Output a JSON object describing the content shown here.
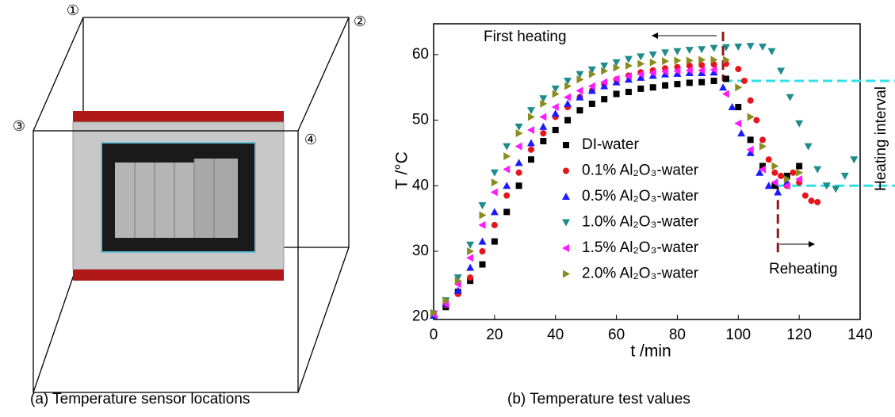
{
  "figure_a": {
    "labels": [
      "①",
      "②",
      "③",
      "④"
    ],
    "caption": "(a) Temperature sensor locations"
  },
  "chart_data": {
    "type": "scatter",
    "caption": "(b) Temperature test values",
    "x_label": "t /min",
    "y_label": "T /°C",
    "xlim": [
      0,
      140
    ],
    "ylim": [
      19.6,
      64.7
    ],
    "xticks": [
      0,
      20,
      40,
      60,
      80,
      100,
      120,
      140
    ],
    "yticks": [
      20,
      30,
      40,
      50,
      60
    ],
    "annotations": [
      "First heating",
      "Reheating",
      "Heating interval"
    ],
    "reference_lines": {
      "x": [
        95,
        113
      ],
      "y": [
        56,
        40
      ]
    },
    "series": [
      {
        "name": "DI-water",
        "color": "#000000",
        "marker": "square",
        "x": [
          0,
          4,
          8,
          12,
          16,
          20,
          24,
          28,
          32,
          36,
          40,
          44,
          48,
          52,
          56,
          60,
          64,
          68,
          72,
          76,
          80,
          84,
          88,
          92,
          96,
          100,
          104,
          108,
          112,
          116,
          120
        ],
        "values": [
          20.3,
          21.5,
          23.8,
          25.5,
          28,
          31.5,
          36,
          40,
          44,
          46.8,
          48.5,
          50,
          51.5,
          52.5,
          53.2,
          54,
          54.3,
          54.8,
          55,
          55.3,
          55.5,
          55.7,
          55.8,
          56,
          56.3,
          52,
          47,
          43,
          40,
          41.5,
          43
        ]
      },
      {
        "name": "0.1% Al₂O₃-water",
        "color": "#e8141c",
        "marker": "circle",
        "x": [
          0,
          4,
          8,
          12,
          16,
          20,
          24,
          28,
          32,
          36,
          40,
          44,
          48,
          52,
          56,
          60,
          64,
          68,
          72,
          76,
          80,
          84,
          88,
          92,
          96,
          100,
          102,
          104,
          106,
          108,
          110,
          112,
          114,
          116,
          118,
          120,
          122,
          124,
          126
        ],
        "values": [
          20.5,
          21.8,
          23.5,
          26,
          30,
          34,
          38.5,
          42,
          45.5,
          48,
          50.5,
          52,
          53.5,
          54.5,
          55.5,
          56.2,
          56.8,
          57.3,
          57.6,
          57.9,
          58.1,
          58.3,
          58.4,
          58.5,
          58.6,
          57.8,
          56,
          53,
          50,
          47,
          44,
          42,
          41.5,
          40,
          42,
          40.5,
          38.5,
          37.7,
          37.5
        ]
      },
      {
        "name": "0.5% Al₂O₃-water",
        "color": "#1a1aff",
        "marker": "triangle-up",
        "x": [
          0,
          4,
          8,
          12,
          16,
          20,
          24,
          28,
          32,
          36,
          40,
          44,
          48,
          52,
          56,
          60,
          64,
          68,
          72,
          76,
          80,
          84,
          88,
          92,
          95,
          98,
          101,
          104,
          107,
          110,
          113,
          116
        ],
        "values": [
          20.2,
          22,
          24,
          27.5,
          31.5,
          36,
          40,
          43.5,
          46.5,
          49,
          51,
          52.5,
          53.5,
          54.5,
          55.2,
          55.8,
          56.2,
          56.5,
          56.8,
          57,
          57.1,
          57.2,
          57.2,
          57.3,
          55,
          52,
          48,
          45,
          42,
          40,
          39,
          40.5
        ]
      },
      {
        "name": "1.0% Al₂O₃-water",
        "color": "#1e8c8c",
        "marker": "triangle-down",
        "x": [
          0,
          4,
          8,
          12,
          16,
          20,
          24,
          28,
          32,
          36,
          40,
          44,
          48,
          52,
          56,
          60,
          64,
          68,
          72,
          76,
          80,
          84,
          88,
          92,
          96,
          100,
          104,
          108,
          111,
          114,
          117,
          120,
          123,
          126,
          129,
          132,
          135,
          138
        ],
        "values": [
          20.5,
          22.5,
          26,
          31,
          37,
          42,
          46,
          49,
          51.5,
          53.3,
          54.8,
          56,
          57,
          57.7,
          58.3,
          58.8,
          59.3,
          59.7,
          60,
          60.3,
          60.5,
          60.7,
          60.8,
          61,
          61.1,
          61.2,
          61.3,
          61.2,
          60.5,
          57.5,
          53.5,
          49.5,
          46,
          42.5,
          40,
          39.5,
          41.5,
          44
        ]
      },
      {
        "name": "1.5% Al₂O₃-water",
        "color": "#ff1aff",
        "marker": "triangle-left",
        "x": [
          0,
          4,
          8,
          12,
          16,
          20,
          24,
          28,
          32,
          36,
          40,
          44,
          48,
          52,
          56,
          60,
          64,
          68,
          72,
          76,
          80,
          84,
          88,
          92,
          96,
          100,
          104,
          108,
          112,
          116,
          120
        ],
        "values": [
          20.4,
          22,
          25,
          29,
          34,
          39,
          42.5,
          46,
          48.5,
          50.5,
          52,
          53.5,
          54.5,
          55.2,
          55.8,
          56.3,
          56.7,
          57,
          57.2,
          57.4,
          57.5,
          57.6,
          57.6,
          57.7,
          54,
          49.5,
          45.5,
          42.5,
          40.5,
          40,
          41
        ]
      },
      {
        "name": "2.0% Al₂O₃-water",
        "color": "#8c8c1e",
        "marker": "triangle-right",
        "x": [
          0,
          4,
          8,
          12,
          16,
          20,
          24,
          28,
          32,
          36,
          40,
          44,
          48,
          52,
          56,
          60,
          64,
          68,
          72,
          76,
          80,
          84,
          88,
          92,
          96,
          100,
          104,
          108,
          112,
          116,
          120
        ],
        "values": [
          20.6,
          22.5,
          25.5,
          30,
          35.5,
          40.5,
          44.5,
          48,
          50.5,
          52.5,
          54,
          55.2,
          56.2,
          57,
          57.5,
          58,
          58.3,
          58.6,
          58.8,
          59,
          59.1,
          59.1,
          59.2,
          59.2,
          59.2,
          55,
          50.5,
          46,
          43,
          41,
          42
        ]
      }
    ]
  }
}
